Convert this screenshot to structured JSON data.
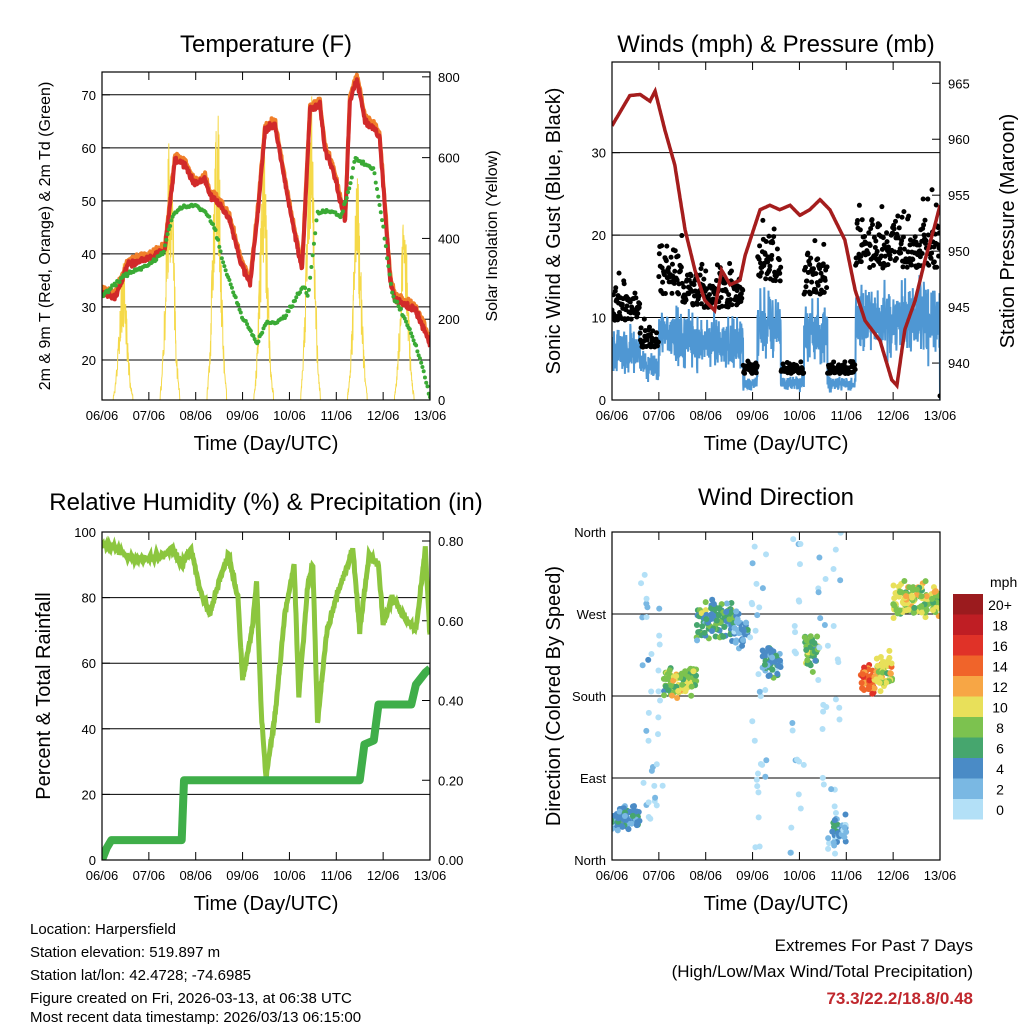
{
  "info": {
    "location": "Location: Harpersfield",
    "elevation": "Station elevation: 519.897 m",
    "latlon": "Station lat/lon: 42.4728; -74.6985",
    "created": "Figure created on Fri, 2026-03-13, at 06:38 UTC",
    "recent": "Most recent data timestamp: 2026/03/13 06:15:00"
  },
  "extremes": {
    "title": "Extremes For Past 7 Days",
    "subtitle": "(High/Low/Max Wind/Total Precipitation)",
    "values": "73.3/22.2/18.8/0.48",
    "color": "#c0272d"
  },
  "chart_data": [
    {
      "type": "line",
      "title": "Temperature (F)",
      "xlabel": "Time (Day/UTC)",
      "ylabel": "2m & 9m T (Red, Orange) & 2m Td (Green)",
      "ylabel_right": "Solar Insolation (Yellow)",
      "xticks": [
        "06/06",
        "07/06",
        "08/06",
        "09/06",
        "10/06",
        "11/06",
        "12/06",
        "13/06"
      ],
      "xlim": [
        0,
        7
      ],
      "ylim": [
        12.45,
        74.3
      ],
      "yticks": [
        20,
        30,
        40,
        50,
        60,
        70
      ],
      "ylim_right": [
        0,
        812
      ],
      "yticks_right": [
        0,
        200,
        400,
        600,
        800
      ],
      "series": [
        {
          "name": "2m T",
          "color": "#d12a2a",
          "points": [
            [
              0,
              32.6
            ],
            [
              0.28,
              31.7
            ],
            [
              0.55,
              37.9
            ],
            [
              1.02,
              39.2
            ],
            [
              1.34,
              40.8
            ],
            [
              1.56,
              57.7
            ],
            [
              1.77,
              56.8
            ],
            [
              1.98,
              53
            ],
            [
              2.2,
              54
            ],
            [
              2.3,
              51.1
            ],
            [
              2.52,
              49.2
            ],
            [
              2.73,
              46.4
            ],
            [
              2.94,
              38.9
            ],
            [
              3.16,
              34.2
            ],
            [
              3.33,
              48.3
            ],
            [
              3.48,
              63.4
            ],
            [
              3.69,
              64.3
            ],
            [
              3.84,
              56.8
            ],
            [
              3.97,
              50.2
            ],
            [
              4.18,
              40.8
            ],
            [
              4.27,
              37
            ],
            [
              4.44,
              67.2
            ],
            [
              4.65,
              68.1
            ],
            [
              4.76,
              59.6
            ],
            [
              4.93,
              55.8
            ],
            [
              5.08,
              50.2
            ],
            [
              5.19,
              46.4
            ],
            [
              5.29,
              69
            ],
            [
              5.44,
              72.8
            ],
            [
              5.61,
              65.3
            ],
            [
              5.83,
              63.4
            ],
            [
              5.93,
              61.5
            ],
            [
              6.04,
              48.3
            ],
            [
              6.15,
              35.1
            ],
            [
              6.25,
              31.3
            ],
            [
              6.47,
              30.4
            ],
            [
              6.68,
              29.4
            ],
            [
              6.89,
              25.7
            ],
            [
              7,
              22.8
            ]
          ]
        },
        {
          "name": "9m T",
          "color": "#f07f2a",
          "offset": 0.8
        },
        {
          "name": "2m Td",
          "color": "#3aaa35",
          "points": [
            [
              0,
              32
            ],
            [
              0.5,
              36
            ],
            [
              1,
              38
            ],
            [
              1.3,
              40
            ],
            [
              1.5,
              47
            ],
            [
              1.7,
              49
            ],
            [
              2,
              49
            ],
            [
              2.2,
              48
            ],
            [
              2.4,
              45
            ],
            [
              2.6,
              38
            ],
            [
              2.8,
              33
            ],
            [
              3,
              28
            ],
            [
              3.2,
              25
            ],
            [
              3.3,
              23
            ],
            [
              3.5,
              27
            ],
            [
              3.7,
              27
            ],
            [
              3.9,
              28
            ],
            [
              4.1,
              31
            ],
            [
              4.3,
              34
            ],
            [
              4.4,
              32
            ],
            [
              4.6,
              48
            ],
            [
              4.9,
              48
            ],
            [
              5.1,
              47
            ],
            [
              5.3,
              53
            ],
            [
              5.4,
              58
            ],
            [
              5.6,
              57
            ],
            [
              5.8,
              56
            ],
            [
              6,
              45
            ],
            [
              6.2,
              32
            ],
            [
              6.4,
              29
            ],
            [
              6.6,
              25
            ],
            [
              6.8,
              20
            ],
            [
              7,
              13
            ]
          ]
        },
        {
          "name": "Solar Insolation",
          "color": "#f5d949",
          "axis": "right",
          "daily_peaks": [
            [
              0.45,
              350
            ],
            [
              1.45,
              680
            ],
            [
              2.45,
              780
            ],
            [
              3.45,
              620
            ],
            [
              4.45,
              790
            ],
            [
              5.45,
              560
            ],
            [
              6.45,
              480
            ]
          ]
        }
      ]
    },
    {
      "type": "line",
      "title": "Winds (mph) & Pressure (mb)",
      "xlabel": "Time (Day/UTC)",
      "ylabel": "Sonic Wind & Gust (Blue, Black)",
      "ylabel_right": "Station Pressure (Maroon)",
      "xticks": [
        "06/06",
        "07/06",
        "08/06",
        "09/06",
        "10/06",
        "11/06",
        "12/06",
        "13/06"
      ],
      "xlim": [
        0,
        7
      ],
      "ylim": [
        0,
        41
      ],
      "yticks": [
        0,
        10,
        20,
        30
      ],
      "ylim_right": [
        936.7,
        966.9
      ],
      "yticks_right": [
        940,
        945,
        950,
        955,
        960,
        965
      ],
      "series": [
        {
          "name": "Sonic Wind",
          "color": "#4f97d3",
          "segments": [
            [
              0,
              0.6,
              6
            ],
            [
              0.6,
              1.0,
              4
            ],
            [
              1.0,
              1.5,
              8
            ],
            [
              1.5,
              2.8,
              7
            ],
            [
              2.8,
              3.1,
              2
            ],
            [
              3.1,
              3.6,
              9
            ],
            [
              3.6,
              4.1,
              2
            ],
            [
              4.1,
              4.6,
              8
            ],
            [
              4.6,
              5.2,
              2
            ],
            [
              5.2,
              7,
              10
            ]
          ]
        },
        {
          "name": "Gust",
          "color": "#000000",
          "gust_factor": 1.6
        },
        {
          "name": "Station Pressure",
          "color": "#a51d1d",
          "axis": "right",
          "points": [
            [
              0,
              961.2
            ],
            [
              0.38,
              963.9
            ],
            [
              0.6,
              964
            ],
            [
              0.81,
              963.4
            ],
            [
              0.92,
              964.3
            ],
            [
              1.13,
              960.8
            ],
            [
              1.34,
              957.7
            ],
            [
              1.56,
              951.9
            ],
            [
              1.77,
              948.3
            ],
            [
              1.98,
              945.6
            ],
            [
              2.19,
              944.7
            ],
            [
              2.34,
              948.3
            ],
            [
              2.52,
              947
            ],
            [
              2.73,
              947.4
            ],
            [
              2.84,
              949.6
            ],
            [
              3.16,
              953.7
            ],
            [
              3.37,
              954.1
            ],
            [
              3.58,
              953.7
            ],
            [
              3.8,
              954.1
            ],
            [
              4.01,
              953.2
            ],
            [
              4.22,
              953.7
            ],
            [
              4.44,
              954.6
            ],
            [
              4.65,
              953.7
            ],
            [
              4.97,
              951
            ],
            [
              5.19,
              946.5
            ],
            [
              5.4,
              943.8
            ],
            [
              5.72,
              942
            ],
            [
              5.97,
              938.5
            ],
            [
              6.08,
              938
            ],
            [
              6.25,
              943
            ],
            [
              6.47,
              945.6
            ],
            [
              6.68,
              949.2
            ],
            [
              6.89,
              952.3
            ],
            [
              7,
              954.1
            ]
          ]
        }
      ]
    },
    {
      "type": "line",
      "title": "Relative Humidity (%) & Precipitation (in)",
      "xlabel": "Time (Day/UTC)",
      "ylabel": "Percent & Total Rainfall",
      "xticks": [
        "06/06",
        "07/06",
        "08/06",
        "09/06",
        "10/06",
        "11/06",
        "12/06",
        "13/06"
      ],
      "xlim": [
        0,
        7
      ],
      "ylim": [
        0,
        100
      ],
      "yticks": [
        0,
        20,
        40,
        60,
        80,
        100
      ],
      "ylim_right": [
        0,
        0.8226
      ],
      "yticks_right": [
        "0.00",
        "0.20",
        "0.40",
        "0.60",
        "0.80"
      ],
      "series": [
        {
          "name": "Relative Humidity",
          "color": "#8cc63f",
          "points": [
            [
              0,
              96
            ],
            [
              0.3,
              95
            ],
            [
              0.6,
              92
            ],
            [
              1,
              92
            ],
            [
              1.3,
              93
            ],
            [
              1.5,
              95
            ],
            [
              1.7,
              90
            ],
            [
              1.9,
              95
            ],
            [
              2.1,
              82
            ],
            [
              2.3,
              75
            ],
            [
              2.5,
              85
            ],
            [
              2.7,
              93
            ],
            [
              2.9,
              80
            ],
            [
              3,
              55
            ],
            [
              3.2,
              70
            ],
            [
              3.3,
              85
            ],
            [
              3.4,
              45
            ],
            [
              3.5,
              25
            ],
            [
              3.7,
              45
            ],
            [
              3.9,
              75
            ],
            [
              4.1,
              90
            ],
            [
              4.2,
              50
            ],
            [
              4.4,
              85
            ],
            [
              4.5,
              90
            ],
            [
              4.6,
              42
            ],
            [
              4.8,
              70
            ],
            [
              5,
              80
            ],
            [
              5.2,
              88
            ],
            [
              5.35,
              95
            ],
            [
              5.5,
              70
            ],
            [
              5.7,
              93
            ],
            [
              5.9,
              90
            ],
            [
              6,
              72
            ],
            [
              6.2,
              80
            ],
            [
              6.4,
              75
            ],
            [
              6.7,
              70
            ],
            [
              6.9,
              95
            ],
            [
              7,
              68
            ]
          ]
        },
        {
          "name": "Total Precipitation",
          "color": "#3fae49",
          "axis": "right",
          "points": [
            [
              0,
              0
            ],
            [
              0.1,
              0.03
            ],
            [
              0.2,
              0.05
            ],
            [
              1.7,
              0.05
            ],
            [
              1.75,
              0.2
            ],
            [
              5.5,
              0.2
            ],
            [
              5.6,
              0.29
            ],
            [
              5.8,
              0.3
            ],
            [
              5.9,
              0.39
            ],
            [
              6.6,
              0.39
            ],
            [
              6.7,
              0.44
            ],
            [
              6.9,
              0.47
            ],
            [
              7,
              0.48
            ]
          ]
        }
      ]
    },
    {
      "type": "scatter",
      "title": "Wind Direction",
      "xlabel": "Time (Day/UTC)",
      "ylabel": "Direction (Colored By Speed)",
      "xticks": [
        "06/06",
        "07/06",
        "08/06",
        "09/06",
        "10/06",
        "11/06",
        "12/06",
        "13/06"
      ],
      "xlim": [
        0,
        7
      ],
      "ylim": [
        0,
        360
      ],
      "yticks": [
        [
          0,
          "North"
        ],
        [
          90,
          "East"
        ],
        [
          180,
          "South"
        ],
        [
          270,
          "West"
        ],
        [
          360,
          "North"
        ]
      ],
      "clusters": [
        [
          0,
          0.6,
          45,
          10,
          5
        ],
        [
          0.6,
          1.1,
          180,
          150,
          2
        ],
        [
          1.1,
          1.8,
          195,
          15,
          9
        ],
        [
          1.8,
          2.6,
          263,
          15,
          7
        ],
        [
          2.6,
          2.9,
          252,
          15,
          4
        ],
        [
          2.9,
          3.3,
          180,
          180,
          1
        ],
        [
          3.2,
          3.6,
          220,
          15,
          5
        ],
        [
          3.8,
          4.1,
          180,
          180,
          1
        ],
        [
          4.1,
          4.4,
          230,
          15,
          8
        ],
        [
          4.4,
          4.9,
          180,
          180,
          1
        ],
        [
          4.7,
          5.0,
          33,
          12,
          4
        ],
        [
          5.3,
          5.6,
          198,
          15,
          15
        ],
        [
          5.6,
          6.0,
          205,
          15,
          11
        ],
        [
          6.0,
          7.0,
          285,
          15,
          10
        ]
      ],
      "legend": {
        "title": "mph",
        "labels": [
          "0",
          "2",
          "4",
          "6",
          "8",
          "10",
          "12",
          "14",
          "16",
          "18",
          "20+"
        ],
        "colors": [
          "#b3e0f7",
          "#7ab8e3",
          "#4a8bc6",
          "#46a66e",
          "#7cc24f",
          "#e8e05a",
          "#f7a645",
          "#f0642a",
          "#e03228",
          "#bf1e24",
          "#9b1b1e"
        ]
      }
    }
  ]
}
